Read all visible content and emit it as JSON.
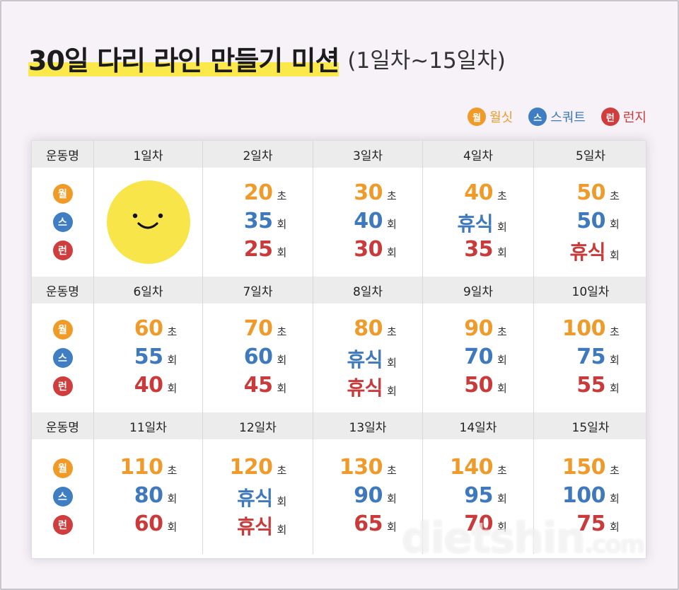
{
  "title": "30일 다리 라인 만들기 미션",
  "subtitle": "(1일차~15일차)",
  "legend": [
    {
      "badge": "월",
      "label": "월싯",
      "color": "orange"
    },
    {
      "badge": "스",
      "label": "스쿼트",
      "color": "blue"
    },
    {
      "badge": "런",
      "label": "런지",
      "color": "red"
    }
  ],
  "row_header": "운동명",
  "badges": {
    "wall": "월",
    "squat": "스",
    "lunge": "런"
  },
  "units": {
    "sec": "초",
    "count": "회"
  },
  "weeks": [
    {
      "days": [
        "1일차",
        "2일차",
        "3일차",
        "4일차",
        "5일차"
      ],
      "wall": [
        "",
        "20",
        "30",
        "40",
        "50"
      ],
      "squat": [
        "",
        "35",
        "40",
        "휴식",
        "50"
      ],
      "lunge": [
        "",
        "25",
        "30",
        "35",
        "휴식"
      ]
    },
    {
      "days": [
        "6일차",
        "7일차",
        "8일차",
        "9일차",
        "10일차"
      ],
      "wall": [
        "60",
        "70",
        "80",
        "90",
        "100"
      ],
      "squat": [
        "55",
        "60",
        "휴식",
        "70",
        "75"
      ],
      "lunge": [
        "40",
        "45",
        "휴식",
        "50",
        "55"
      ]
    },
    {
      "days": [
        "11일차",
        "12일차",
        "13일차",
        "14일차",
        "15일차"
      ],
      "wall": [
        "110",
        "120",
        "130",
        "140",
        "150"
      ],
      "squat": [
        "80",
        "휴식",
        "90",
        "95",
        "100"
      ],
      "lunge": [
        "60",
        "휴식",
        "65",
        "70",
        "75"
      ]
    }
  ],
  "watermark": "dietshin",
  "watermark_suffix": ".com",
  "colors": {
    "wall": "#ef9b2b",
    "squat": "#3f79bd",
    "lunge": "#c93a3a",
    "highlight": "#fbe84a",
    "smiley": "#f8e54a"
  }
}
